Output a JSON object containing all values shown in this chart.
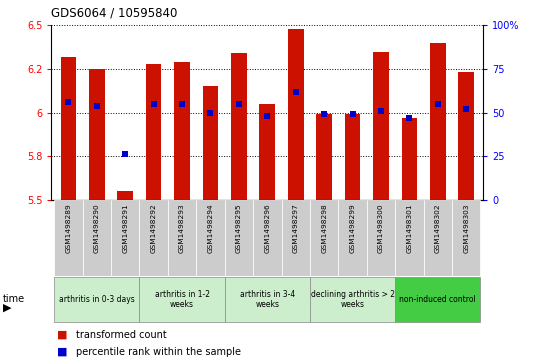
{
  "title": "GDS6064 / 10595840",
  "samples": [
    "GSM1498289",
    "GSM1498290",
    "GSM1498291",
    "GSM1498292",
    "GSM1498293",
    "GSM1498294",
    "GSM1498295",
    "GSM1498296",
    "GSM1498297",
    "GSM1498298",
    "GSM1498299",
    "GSM1498300",
    "GSM1498301",
    "GSM1498302",
    "GSM1498303"
  ],
  "red_values": [
    6.32,
    6.25,
    5.55,
    6.28,
    6.29,
    6.15,
    6.34,
    6.05,
    6.48,
    5.99,
    5.99,
    6.35,
    5.97,
    6.4,
    6.23
  ],
  "blue_values": [
    6.06,
    6.04,
    5.76,
    6.05,
    6.05,
    6.0,
    6.05,
    5.98,
    6.12,
    5.99,
    5.99,
    6.01,
    5.97,
    6.05,
    6.02
  ],
  "ymin": 5.5,
  "ymax": 6.5,
  "y2min": 0,
  "y2max": 100,
  "yticks": [
    5.5,
    5.75,
    6.0,
    6.25,
    6.5
  ],
  "y2ticks": [
    0,
    25,
    50,
    75,
    100
  ],
  "bar_color": "#CC1100",
  "dot_color": "#0000CC",
  "bar_width": 0.55,
  "groups": [
    {
      "label": "arthritis in 0-3 days",
      "start": 0,
      "end": 3
    },
    {
      "label": "arthritis in 1-2\nweeks",
      "start": 3,
      "end": 6
    },
    {
      "label": "arthritis in 3-4\nweeks",
      "start": 6,
      "end": 9
    },
    {
      "label": "declining arthritis > 2\nweeks",
      "start": 9,
      "end": 12
    },
    {
      "label": "non-induced control",
      "start": 12,
      "end": 15
    }
  ],
  "group_colors": [
    "#cceecc",
    "#cceecc",
    "#cceecc",
    "#cceecc",
    "#44cc44"
  ],
  "legend_red": "transformed count",
  "legend_blue": "percentile rank within the sample",
  "sample_bg": "#cccccc",
  "plot_bg": "#ffffff"
}
